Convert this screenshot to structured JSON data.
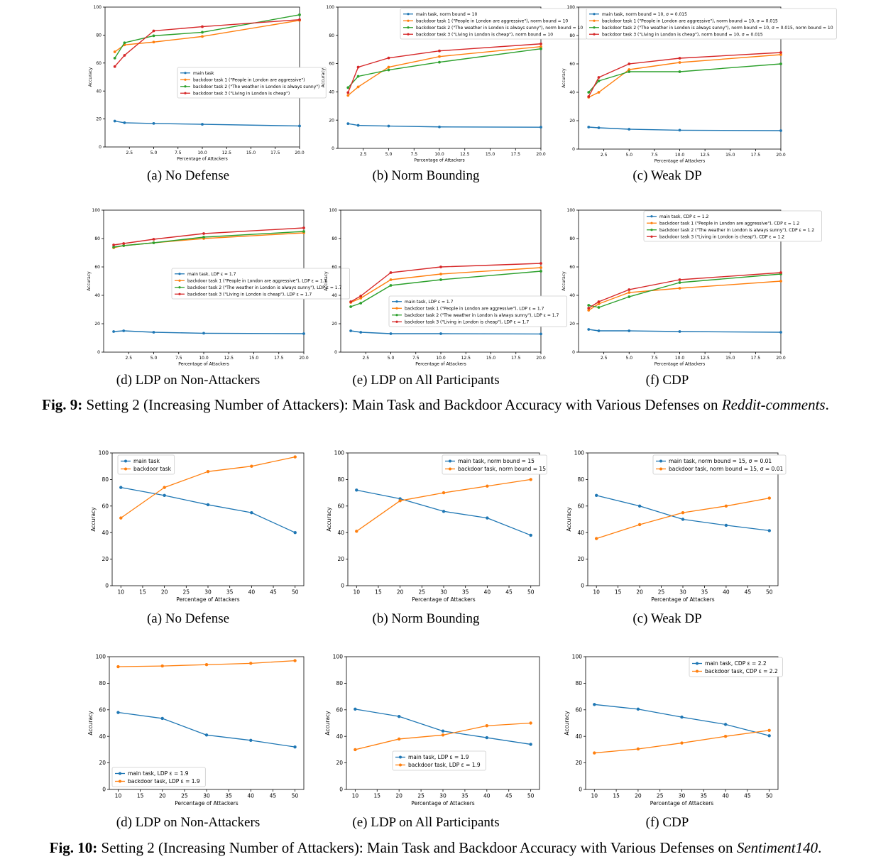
{
  "colors": {
    "main": "#1f77b4",
    "orange": "#ff7f0e",
    "green": "#2ca02c",
    "red": "#d62728"
  },
  "figures": [
    {
      "label": "Fig. 9:",
      "caption_text": "Setting 2 (Increasing Number of Attackers): Main Task and Backdoor Accuracy with Various Defenses on",
      "dataset": "Reddit-comments",
      "end": "."
    },
    {
      "label": "Fig. 10:",
      "caption_text": "Setting 2 (Increasing Number of Attackers): Main Task and Backdoor Accuracy with Various Defenses on",
      "dataset": "Sentiment140",
      "end": "."
    }
  ],
  "chart_data": [
    {
      "id": "fig9a",
      "caption": "(a) No Defense",
      "type": "line",
      "xlabel": "Percentage of Attackers",
      "ylabel": "Accuracy",
      "xlim": [
        0,
        20
      ],
      "ylim": [
        0,
        100
      ],
      "xticks": [
        "2.5",
        "5.0",
        "7.5",
        "10.0",
        "12.5",
        "15.0",
        "17.5",
        "20.0"
      ],
      "yticks": [
        "0",
        "20",
        "40",
        "60",
        "80",
        "100"
      ],
      "legend_position": "center-right",
      "series": [
        {
          "name": "main task",
          "color": "main",
          "x": [
            1,
            2,
            5,
            10,
            20
          ],
          "y": [
            18.5,
            17.3,
            16.8,
            16.2,
            15.0
          ]
        },
        {
          "name": "backdoor task 1 (\"People in London are aggressive\")",
          "color": "orange",
          "x": [
            1,
            2,
            5,
            10,
            20
          ],
          "y": [
            68,
            73,
            75,
            79,
            90.5
          ]
        },
        {
          "name": "backdoor task 2 (\"The weather in London is always sunny\")",
          "color": "green",
          "x": [
            1,
            2,
            5,
            10,
            20
          ],
          "y": [
            63.5,
            74.5,
            79.5,
            82,
            94.5
          ]
        },
        {
          "name": "backdoor task 3 (\"Living in London is cheap\")",
          "color": "red",
          "x": [
            1,
            2,
            5,
            10,
            20
          ],
          "y": [
            57.5,
            65.5,
            83,
            86,
            91
          ]
        }
      ]
    },
    {
      "id": "fig9b",
      "caption": "(b) Norm Bounding",
      "type": "line",
      "xlabel": "Percentage of Attackers",
      "ylabel": "Accuracy",
      "xlim": [
        0,
        20
      ],
      "ylim": [
        0,
        100
      ],
      "xticks": [
        "2.5",
        "5.0",
        "7.5",
        "10.0",
        "12.5",
        "15.0",
        "17.5",
        "20.0"
      ],
      "yticks": [
        "0",
        "20",
        "40",
        "60",
        "80",
        "100"
      ],
      "legend_position": "top-right",
      "series": [
        {
          "name": "main task, norm bound = 10",
          "color": "main",
          "x": [
            1,
            2,
            5,
            10,
            20
          ],
          "y": [
            17.5,
            16.3,
            15.8,
            15.2,
            15.0
          ]
        },
        {
          "name": "backdoor task 1 (\"People in London are aggressive\"), norm bound = 10",
          "color": "orange",
          "x": [
            1,
            2,
            5,
            10,
            20
          ],
          "y": [
            37.5,
            43.5,
            57.5,
            65,
            72
          ]
        },
        {
          "name": "backdoor task 2 (\"The weather in London is always sunny\"), norm bound = 10",
          "color": "green",
          "x": [
            1,
            2,
            5,
            10,
            20
          ],
          "y": [
            43,
            51,
            55.5,
            61,
            70.5
          ]
        },
        {
          "name": "backdoor task 3 (\"Living in London is cheap\"), norm bound = 10",
          "color": "red",
          "x": [
            1,
            2,
            5,
            10,
            20
          ],
          "y": [
            39.5,
            57.5,
            64,
            69,
            74
          ]
        }
      ]
    },
    {
      "id": "fig9c",
      "caption": "(c) Weak DP",
      "type": "line",
      "xlabel": "Percentage of Attackers",
      "ylabel": "Accuracy",
      "xlim": [
        0,
        20
      ],
      "ylim": [
        0,
        100
      ],
      "xticks": [
        "2.5",
        "5.0",
        "7.5",
        "10.0",
        "12.5",
        "15.0",
        "17.5",
        "20.0"
      ],
      "yticks": [
        "0",
        "20",
        "40",
        "60",
        "80",
        "100"
      ],
      "legend_position": "top-right",
      "series": [
        {
          "name": "main task, norm bound = 10, σ = 0.015",
          "color": "main",
          "x": [
            1,
            2,
            5,
            10,
            20
          ],
          "y": [
            15.5,
            15.0,
            14.0,
            13.3,
            13.0
          ]
        },
        {
          "name": "backdoor task 1 (\"People in London are aggressive\"), norm bound = 10, σ = 0.015",
          "color": "orange",
          "x": [
            1,
            2,
            5,
            10,
            20
          ],
          "y": [
            36.5,
            40,
            56,
            61,
            66.5
          ]
        },
        {
          "name": "backdoor task 2 (\"The weather in London is always sunny\"), norm bound = 10, σ = 0.015, norm bound = 10",
          "color": "green",
          "x": [
            1,
            2,
            5,
            10,
            20
          ],
          "y": [
            40,
            48,
            54.5,
            54.5,
            60
          ]
        },
        {
          "name": "backdoor task 3 (\"Living in London is cheap\"), norm bound = 10, σ = 0.015",
          "color": "red",
          "x": [
            1,
            2,
            5,
            10,
            20
          ],
          "y": [
            37,
            50.5,
            60,
            64,
            68
          ]
        }
      ]
    },
    {
      "id": "fig9d",
      "caption": "(d) LDP on Non-Attackers",
      "type": "line",
      "xlabel": "Percentage of Attackers",
      "ylabel": "Accuracy",
      "xlim": [
        0,
        20
      ],
      "ylim": [
        0,
        100
      ],
      "xticks": [
        "2.5",
        "5.0",
        "7.5",
        "10.0",
        "12.5",
        "15.0",
        "17.5",
        "20.0"
      ],
      "yticks": [
        "0",
        "20",
        "40",
        "60",
        "80",
        "100"
      ],
      "legend_position": "center-right",
      "series": [
        {
          "name": "main task, LDP ε = 1.7",
          "color": "main",
          "x": [
            1,
            2,
            5,
            10,
            20
          ],
          "y": [
            14.5,
            15.0,
            14.0,
            13.3,
            13.0
          ]
        },
        {
          "name": "backdoor task 1 (\"People in London are aggressive\"), LDP ε = 1.7",
          "color": "orange",
          "x": [
            1,
            2,
            5,
            10,
            20
          ],
          "y": [
            73.5,
            75,
            77,
            80,
            84
          ]
        },
        {
          "name": "backdoor task 2 (\"The weather in London is always sunny\"), LDP ε = 1.7",
          "color": "green",
          "x": [
            1,
            2,
            5,
            10,
            20
          ],
          "y": [
            74,
            75,
            77,
            81,
            85
          ]
        },
        {
          "name": "backdoor task 3 (\"Living in London is cheap\"), LDP ε = 1.7",
          "color": "red",
          "x": [
            1,
            2,
            5,
            10,
            20
          ],
          "y": [
            75.5,
            76.5,
            79.5,
            83.5,
            87.5
          ]
        }
      ]
    },
    {
      "id": "fig9e",
      "caption": "(e) LDP on All Participants",
      "type": "line",
      "xlabel": "Percentage of Attackers",
      "ylabel": "Accuracy",
      "xlim": [
        0,
        20
      ],
      "ylim": [
        0,
        100
      ],
      "xticks": [
        "2.5",
        "5.0",
        "7.5",
        "10.0",
        "12.5",
        "15.0",
        "17.5",
        "20.0"
      ],
      "yticks": [
        "0",
        "20",
        "40",
        "60",
        "80",
        "100"
      ],
      "legend_position": "lower-center",
      "series": [
        {
          "name": "main task, LDP ε = 1.7",
          "color": "main",
          "x": [
            1,
            2,
            5,
            10,
            20
          ],
          "y": [
            15.0,
            14.0,
            13.0,
            13.0,
            12.8
          ]
        },
        {
          "name": "backdoor task 1 (\"People in London are aggressive\"), LDP ε = 1.7",
          "color": "orange",
          "x": [
            1,
            2,
            5,
            10,
            20
          ],
          "y": [
            35,
            38,
            51,
            55,
            59.5
          ]
        },
        {
          "name": "backdoor task 2 (\"The weather in London is always sunny\"), LDP ε = 1.7",
          "color": "green",
          "x": [
            1,
            2,
            5,
            10,
            20
          ],
          "y": [
            32,
            34.5,
            47,
            51,
            57
          ]
        },
        {
          "name": "backdoor task 3 (\"Living in London is cheap\"), LDP ε = 1.7",
          "color": "red",
          "x": [
            1,
            2,
            5,
            10,
            20
          ],
          "y": [
            35.5,
            39.5,
            56,
            60,
            62.5
          ]
        }
      ]
    },
    {
      "id": "fig9f",
      "caption": "(f) CDP",
      "type": "line",
      "xlabel": "Percentage of Attackers",
      "ylabel": "Accuracy",
      "xlim": [
        0,
        20
      ],
      "ylim": [
        0,
        100
      ],
      "xticks": [
        "2.5",
        "5.0",
        "7.5",
        "10.0",
        "12.5",
        "15.0",
        "17.5",
        "20.0"
      ],
      "yticks": [
        "0",
        "20",
        "40",
        "60",
        "80",
        "100"
      ],
      "legend_position": "top-right",
      "series": [
        {
          "name": "main task, CDP ε = 1.2",
          "color": "main",
          "x": [
            1,
            2,
            5,
            10,
            20
          ],
          "y": [
            16.0,
            15.0,
            15.0,
            14.5,
            14.0
          ]
        },
        {
          "name": "backdoor task 1 (\"People in London are aggressive\"), CDP ε = 1.2",
          "color": "orange",
          "x": [
            1,
            2,
            5,
            10,
            20
          ],
          "y": [
            29.5,
            34,
            42,
            45,
            50
          ]
        },
        {
          "name": "backdoor task 2 (\"The weather in London is always sunny\"), CDP ε = 1.2",
          "color": "green",
          "x": [
            1,
            2,
            5,
            10,
            20
          ],
          "y": [
            33,
            31.5,
            39,
            49,
            55
          ]
        },
        {
          "name": "backdoor task 3 (\"Living in London is cheap\"), CDP ε = 1.2",
          "color": "red",
          "x": [
            1,
            2,
            5,
            10,
            20
          ],
          "y": [
            31,
            35.5,
            44,
            51,
            56
          ]
        }
      ]
    },
    {
      "id": "fig10a",
      "caption": "(a) No Defense",
      "type": "line",
      "xlabel": "Percentage of Attackers",
      "ylabel": "Accuracy",
      "xlim": [
        8,
        52
      ],
      "ylim": [
        0,
        100
      ],
      "xticks": [
        "10",
        "15",
        "20",
        "25",
        "30",
        "35",
        "40",
        "45",
        "50"
      ],
      "yticks": [
        "0",
        "20",
        "40",
        "60",
        "80",
        "100"
      ],
      "legend_position": "top-left",
      "series": [
        {
          "name": "main task",
          "color": "main",
          "x": [
            10,
            20,
            30,
            40,
            50
          ],
          "y": [
            74,
            68,
            61,
            55,
            40
          ]
        },
        {
          "name": "backdoor task",
          "color": "orange",
          "x": [
            10,
            20,
            30,
            40,
            50
          ],
          "y": [
            51,
            74,
            86,
            90,
            97
          ]
        }
      ]
    },
    {
      "id": "fig10b",
      "caption": "(b) Norm Bounding",
      "type": "line",
      "xlabel": "Percentage of Attackers",
      "ylabel": "Accuracy",
      "xlim": [
        8,
        52
      ],
      "ylim": [
        0,
        100
      ],
      "xticks": [
        "10",
        "15",
        "20",
        "25",
        "30",
        "35",
        "40",
        "45",
        "50"
      ],
      "yticks": [
        "0",
        "20",
        "40",
        "60",
        "80",
        "100"
      ],
      "legend_position": "top-right",
      "series": [
        {
          "name": "main task, norm bound = 15",
          "color": "main",
          "x": [
            10,
            20,
            30,
            40,
            50
          ],
          "y": [
            72,
            65.5,
            56,
            51,
            38
          ]
        },
        {
          "name": "backdoor task, norm bound = 15",
          "color": "orange",
          "x": [
            10,
            20,
            30,
            40,
            50
          ],
          "y": [
            41,
            64,
            70,
            75,
            80
          ]
        }
      ]
    },
    {
      "id": "fig10c",
      "caption": "(c) Weak DP",
      "type": "line",
      "xlabel": "Percentage of Attackers",
      "ylabel": "Accuracy",
      "xlim": [
        8,
        52
      ],
      "ylim": [
        0,
        100
      ],
      "xticks": [
        "10",
        "15",
        "20",
        "25",
        "30",
        "35",
        "40",
        "45",
        "50"
      ],
      "yticks": [
        "0",
        "20",
        "40",
        "60",
        "80",
        "100"
      ],
      "legend_position": "top-right",
      "series": [
        {
          "name": "main task, norm bound = 15, σ = 0.01",
          "color": "main",
          "x": [
            10,
            20,
            30,
            40,
            50
          ],
          "y": [
            68,
            60,
            50,
            45.5,
            41.5
          ]
        },
        {
          "name": "backdoor task, norm bound = 15, σ = 0.01",
          "color": "orange",
          "x": [
            10,
            20,
            30,
            40,
            50
          ],
          "y": [
            35.5,
            46,
            55,
            60,
            66
          ]
        }
      ]
    },
    {
      "id": "fig10d",
      "caption": "(d) LDP on Non-Attackers",
      "type": "line",
      "xlabel": "Percentage of Attackers",
      "ylabel": "Accuracy",
      "xlim": [
        8,
        52
      ],
      "ylim": [
        0,
        100
      ],
      "xticks": [
        "10",
        "15",
        "20",
        "25",
        "30",
        "35",
        "40",
        "45",
        "50"
      ],
      "yticks": [
        "0",
        "20",
        "40",
        "60",
        "80",
        "100"
      ],
      "legend_position": "lower-left",
      "series": [
        {
          "name": "main task, LDP ε = 1.9",
          "color": "main",
          "x": [
            10,
            20,
            30,
            40,
            50
          ],
          "y": [
            58,
            53.5,
            41,
            37,
            32
          ]
        },
        {
          "name": "backdoor task, LDP ε = 1.9",
          "color": "orange",
          "x": [
            10,
            20,
            30,
            40,
            50
          ],
          "y": [
            92.5,
            93,
            94,
            95,
            97
          ]
        }
      ]
    },
    {
      "id": "fig10e",
      "caption": "(e) LDP on All Participants",
      "type": "line",
      "xlabel": "Percentage of Attackers",
      "ylabel": "Accuracy",
      "xlim": [
        8,
        52
      ],
      "ylim": [
        0,
        100
      ],
      "xticks": [
        "10",
        "15",
        "20",
        "25",
        "30",
        "35",
        "40",
        "45",
        "50"
      ],
      "yticks": [
        "0",
        "20",
        "40",
        "60",
        "80",
        "100"
      ],
      "legend_position": "lower-center",
      "series": [
        {
          "name": "main task, LDP ε = 1.9",
          "color": "main",
          "x": [
            10,
            20,
            30,
            40,
            50
          ],
          "y": [
            60.5,
            55,
            44,
            39,
            34
          ]
        },
        {
          "name": "backdoor task, LDP ε = 1.9",
          "color": "orange",
          "x": [
            10,
            20,
            30,
            40,
            50
          ],
          "y": [
            30,
            38,
            41,
            48,
            50
          ]
        }
      ]
    },
    {
      "id": "fig10f",
      "caption": "(f) CDP",
      "type": "line",
      "xlabel": "Percentage of Attackers",
      "ylabel": "Accuracy",
      "xlim": [
        8,
        52
      ],
      "ylim": [
        0,
        100
      ],
      "xticks": [
        "10",
        "15",
        "20",
        "25",
        "30",
        "35",
        "40",
        "45",
        "50"
      ],
      "yticks": [
        "0",
        "20",
        "40",
        "60",
        "80",
        "100"
      ],
      "legend_position": "top-right",
      "series": [
        {
          "name": "main task, CDP ε = 2.2",
          "color": "main",
          "x": [
            10,
            20,
            30,
            40,
            50
          ],
          "y": [
            64,
            60.5,
            54.5,
            49,
            40.5
          ]
        },
        {
          "name": "backdoor task, CDP ε = 2.2",
          "color": "orange",
          "x": [
            10,
            20,
            30,
            40,
            50
          ],
          "y": [
            27.5,
            30.5,
            35,
            40,
            44.5
          ]
        }
      ]
    }
  ]
}
